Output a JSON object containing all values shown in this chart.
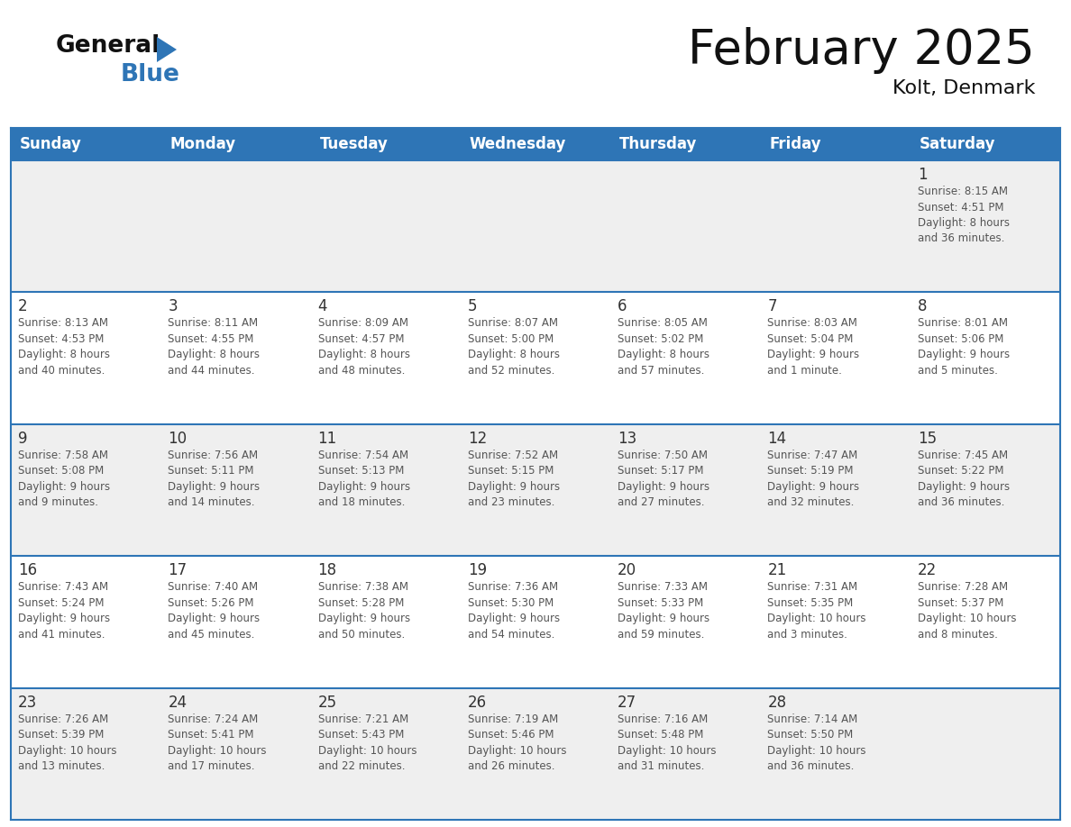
{
  "title": "February 2025",
  "subtitle": "Kolt, Denmark",
  "header_bg_color": "#2E75B6",
  "header_text_color": "#FFFFFF",
  "days_of_week": [
    "Sunday",
    "Monday",
    "Tuesday",
    "Wednesday",
    "Thursday",
    "Friday",
    "Saturday"
  ],
  "cell_bg_row0": "#EFEFEF",
  "cell_bg_row1": "#FFFFFF",
  "cell_bg_row2": "#EFEFEF",
  "cell_bg_row3": "#FFFFFF",
  "cell_bg_row4": "#EFEFEF",
  "cell_border_color": "#2E75B6",
  "day_number_color": "#333333",
  "info_text_color": "#555555",
  "logo_general_color": "#111111",
  "logo_blue_color": "#2E75B6",
  "calendar_data": [
    [
      null,
      null,
      null,
      null,
      null,
      null,
      {
        "day": "1",
        "sunrise": "8:15 AM",
        "sunset": "4:51 PM",
        "daylight": "8 hours\nand 36 minutes."
      }
    ],
    [
      {
        "day": "2",
        "sunrise": "8:13 AM",
        "sunset": "4:53 PM",
        "daylight": "8 hours\nand 40 minutes."
      },
      {
        "day": "3",
        "sunrise": "8:11 AM",
        "sunset": "4:55 PM",
        "daylight": "8 hours\nand 44 minutes."
      },
      {
        "day": "4",
        "sunrise": "8:09 AM",
        "sunset": "4:57 PM",
        "daylight": "8 hours\nand 48 minutes."
      },
      {
        "day": "5",
        "sunrise": "8:07 AM",
        "sunset": "5:00 PM",
        "daylight": "8 hours\nand 52 minutes."
      },
      {
        "day": "6",
        "sunrise": "8:05 AM",
        "sunset": "5:02 PM",
        "daylight": "8 hours\nand 57 minutes."
      },
      {
        "day": "7",
        "sunrise": "8:03 AM",
        "sunset": "5:04 PM",
        "daylight": "9 hours\nand 1 minute."
      },
      {
        "day": "8",
        "sunrise": "8:01 AM",
        "sunset": "5:06 PM",
        "daylight": "9 hours\nand 5 minutes."
      }
    ],
    [
      {
        "day": "9",
        "sunrise": "7:58 AM",
        "sunset": "5:08 PM",
        "daylight": "9 hours\nand 9 minutes."
      },
      {
        "day": "10",
        "sunrise": "7:56 AM",
        "sunset": "5:11 PM",
        "daylight": "9 hours\nand 14 minutes."
      },
      {
        "day": "11",
        "sunrise": "7:54 AM",
        "sunset": "5:13 PM",
        "daylight": "9 hours\nand 18 minutes."
      },
      {
        "day": "12",
        "sunrise": "7:52 AM",
        "sunset": "5:15 PM",
        "daylight": "9 hours\nand 23 minutes."
      },
      {
        "day": "13",
        "sunrise": "7:50 AM",
        "sunset": "5:17 PM",
        "daylight": "9 hours\nand 27 minutes."
      },
      {
        "day": "14",
        "sunrise": "7:47 AM",
        "sunset": "5:19 PM",
        "daylight": "9 hours\nand 32 minutes."
      },
      {
        "day": "15",
        "sunrise": "7:45 AM",
        "sunset": "5:22 PM",
        "daylight": "9 hours\nand 36 minutes."
      }
    ],
    [
      {
        "day": "16",
        "sunrise": "7:43 AM",
        "sunset": "5:24 PM",
        "daylight": "9 hours\nand 41 minutes."
      },
      {
        "day": "17",
        "sunrise": "7:40 AM",
        "sunset": "5:26 PM",
        "daylight": "9 hours\nand 45 minutes."
      },
      {
        "day": "18",
        "sunrise": "7:38 AM",
        "sunset": "5:28 PM",
        "daylight": "9 hours\nand 50 minutes."
      },
      {
        "day": "19",
        "sunrise": "7:36 AM",
        "sunset": "5:30 PM",
        "daylight": "9 hours\nand 54 minutes."
      },
      {
        "day": "20",
        "sunrise": "7:33 AM",
        "sunset": "5:33 PM",
        "daylight": "9 hours\nand 59 minutes."
      },
      {
        "day": "21",
        "sunrise": "7:31 AM",
        "sunset": "5:35 PM",
        "daylight": "10 hours\nand 3 minutes."
      },
      {
        "day": "22",
        "sunrise": "7:28 AM",
        "sunset": "5:37 PM",
        "daylight": "10 hours\nand 8 minutes."
      }
    ],
    [
      {
        "day": "23",
        "sunrise": "7:26 AM",
        "sunset": "5:39 PM",
        "daylight": "10 hours\nand 13 minutes."
      },
      {
        "day": "24",
        "sunrise": "7:24 AM",
        "sunset": "5:41 PM",
        "daylight": "10 hours\nand 17 minutes."
      },
      {
        "day": "25",
        "sunrise": "7:21 AM",
        "sunset": "5:43 PM",
        "daylight": "10 hours\nand 22 minutes."
      },
      {
        "day": "26",
        "sunrise": "7:19 AM",
        "sunset": "5:46 PM",
        "daylight": "10 hours\nand 26 minutes."
      },
      {
        "day": "27",
        "sunrise": "7:16 AM",
        "sunset": "5:48 PM",
        "daylight": "10 hours\nand 31 minutes."
      },
      {
        "day": "28",
        "sunrise": "7:14 AM",
        "sunset": "5:50 PM",
        "daylight": "10 hours\nand 36 minutes."
      },
      null
    ]
  ],
  "row_colors": [
    "#EFEFEF",
    "#FFFFFF",
    "#EFEFEF",
    "#FFFFFF",
    "#EFEFEF"
  ]
}
